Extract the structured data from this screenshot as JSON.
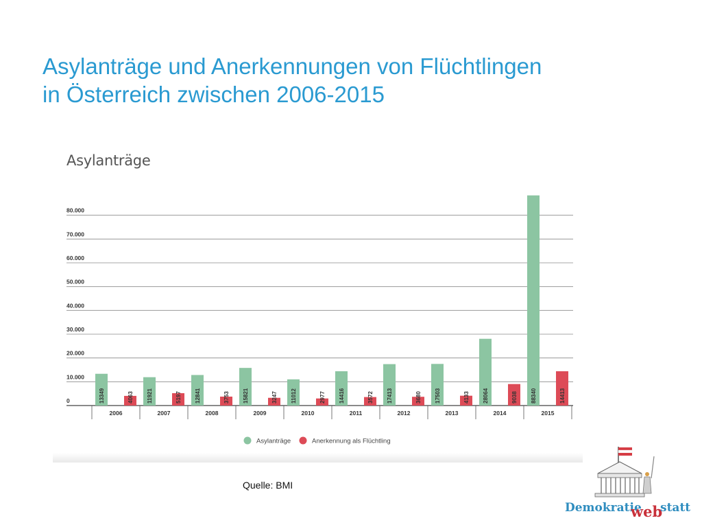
{
  "slide": {
    "title_line1": "Asylanträge und Anerkennungen von Flüchtlingen",
    "title_line2": "in Österreich zwischen 2006-2015",
    "source": "Quelle: BMI",
    "logo_text": {
      "part1": "Demokratie",
      "part2": "web",
      "part3": "statt"
    }
  },
  "chart_data": {
    "type": "bar",
    "title": "Asylanträge",
    "categories": [
      "2006",
      "2007",
      "2008",
      "2009",
      "2010",
      "2011",
      "2012",
      "2013",
      "2014",
      "2015"
    ],
    "series": [
      {
        "name": "Asylanträge",
        "color": "#8cc5a2",
        "values": [
          13349,
          11921,
          12841,
          15821,
          11012,
          14416,
          17413,
          17503,
          28064,
          88340
        ]
      },
      {
        "name": "Anerkennung als Flüchtling",
        "color": "#dd4b57",
        "values": [
          4063,
          5197,
          3753,
          3247,
          2977,
          3572,
          3680,
          4133,
          9038,
          14413
        ]
      }
    ],
    "y_ticks": [
      "0",
      "10.000",
      "20.000",
      "30.000",
      "40.000",
      "50.000",
      "60.000",
      "70.000",
      "80.000"
    ],
    "ylim": [
      0,
      90000
    ],
    "grid": true,
    "legend_position": "bottom-center",
    "value_labels": "vertical-inside-bars"
  }
}
